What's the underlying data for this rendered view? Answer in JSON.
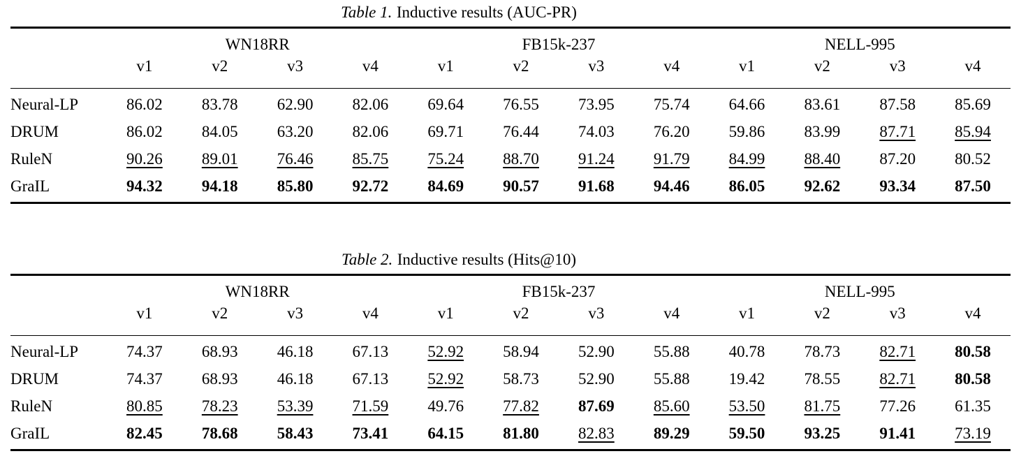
{
  "table1": {
    "caption_label": "Table 1.",
    "caption_text": "Inductive results (AUC-PR)",
    "dataset_groups": [
      "WN18RR",
      "FB15k-237",
      "NELL-995"
    ],
    "version_headers": [
      "v1",
      "v2",
      "v3",
      "v4",
      "v1",
      "v2",
      "v3",
      "v4",
      "v1",
      "v2",
      "v3",
      "v4"
    ],
    "rows": [
      {
        "method": "Neural-LP",
        "values": [
          "86.02",
          "83.78",
          "62.90",
          "82.06",
          "69.64",
          "76.55",
          "73.95",
          "75.74",
          "64.66",
          "83.61",
          "87.58",
          "85.69"
        ],
        "marks": [
          "",
          "",
          "",
          "",
          "",
          "",
          "",
          "",
          "",
          "",
          "",
          ""
        ]
      },
      {
        "method": "DRUM",
        "values": [
          "86.02",
          "84.05",
          "63.20",
          "82.06",
          "69.71",
          "76.44",
          "74.03",
          "76.20",
          "59.86",
          "83.99",
          "87.71",
          "85.94"
        ],
        "marks": [
          "",
          "",
          "",
          "",
          "",
          "",
          "",
          "",
          "",
          "",
          "u",
          "u"
        ]
      },
      {
        "method": "RuleN",
        "values": [
          "90.26",
          "89.01",
          "76.46",
          "85.75",
          "75.24",
          "88.70",
          "91.24",
          "91.79",
          "84.99",
          "88.40",
          "87.20",
          "80.52"
        ],
        "marks": [
          "u",
          "u",
          "u",
          "u",
          "u",
          "u",
          "u",
          "u",
          "u",
          "u",
          "",
          ""
        ]
      },
      {
        "method": "GraIL",
        "values": [
          "94.32",
          "94.18",
          "85.80",
          "92.72",
          "84.69",
          "90.57",
          "91.68",
          "94.46",
          "86.05",
          "92.62",
          "93.34",
          "87.50"
        ],
        "marks": [
          "b",
          "b",
          "b",
          "b",
          "b",
          "b",
          "b",
          "b",
          "b",
          "b",
          "b",
          "b"
        ]
      }
    ]
  },
  "table2": {
    "caption_label": "Table 2.",
    "caption_text": "Inductive results (Hits@10)",
    "dataset_groups": [
      "WN18RR",
      "FB15k-237",
      "NELL-995"
    ],
    "version_headers": [
      "v1",
      "v2",
      "v3",
      "v4",
      "v1",
      "v2",
      "v3",
      "v4",
      "v1",
      "v2",
      "v3",
      "v4"
    ],
    "rows": [
      {
        "method": "Neural-LP",
        "values": [
          "74.37",
          "68.93",
          "46.18",
          "67.13",
          "52.92",
          "58.94",
          "52.90",
          "55.88",
          "40.78",
          "78.73",
          "82.71",
          "80.58"
        ],
        "marks": [
          "",
          "",
          "",
          "",
          "u",
          "",
          "",
          "",
          "",
          "",
          "u",
          "b"
        ]
      },
      {
        "method": "DRUM",
        "values": [
          "74.37",
          "68.93",
          "46.18",
          "67.13",
          "52.92",
          "58.73",
          "52.90",
          "55.88",
          "19.42",
          "78.55",
          "82.71",
          "80.58"
        ],
        "marks": [
          "",
          "",
          "",
          "",
          "u",
          "",
          "",
          "",
          "",
          "",
          "u",
          "b"
        ]
      },
      {
        "method": "RuleN",
        "values": [
          "80.85",
          "78.23",
          "53.39",
          "71.59",
          "49.76",
          "77.82",
          "87.69",
          "85.60",
          "53.50",
          "81.75",
          "77.26",
          "61.35"
        ],
        "marks": [
          "u",
          "u",
          "u",
          "u",
          "",
          "u",
          "b",
          "u",
          "u",
          "u",
          "",
          ""
        ]
      },
      {
        "method": "GraIL",
        "values": [
          "82.45",
          "78.68",
          "58.43",
          "73.41",
          "64.15",
          "81.80",
          "82.83",
          "89.29",
          "59.50",
          "93.25",
          "91.41",
          "73.19"
        ],
        "marks": [
          "b",
          "b",
          "b",
          "b",
          "b",
          "b",
          "u",
          "b",
          "b",
          "b",
          "b",
          "u"
        ]
      }
    ]
  }
}
